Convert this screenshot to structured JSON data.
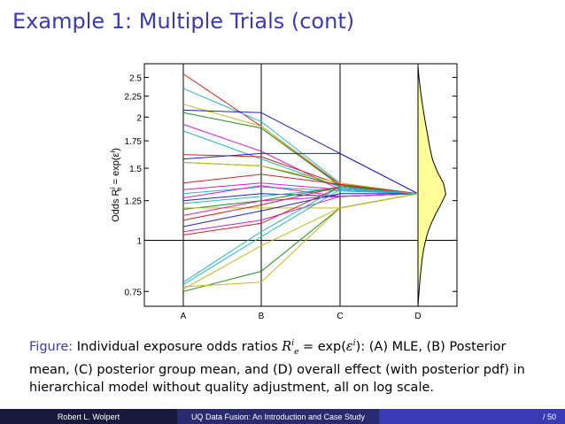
{
  "slide": {
    "title": "Example 1: Multiple Trials (cont)",
    "caption_label": "Figure:",
    "caption_pre": "Individual exposure odds ratios ",
    "caption_eq": "= exp(",
    "caption_post": "): (A) MLE, (B) Posterior mean, (C) posterior group mean, and (D) overall effect (with posterior pdf) in hierarchical model without quality adjustment, all on log scale.",
    "math_R": "R",
    "math_sup_i": "i",
    "math_sub_e": "e",
    "math_eps": "ε"
  },
  "footer": {
    "author": "Robert L. Wolpert",
    "talk_title": "UQ Data Fusion: An Introduction and Case Study",
    "page": "/ 50"
  },
  "chart_data": {
    "type": "line",
    "categories": [
      "A",
      "B",
      "C",
      "D"
    ],
    "ylabel": "Odds R",
    "ylabel_sup": "i",
    "ylabel_sub": "e",
    "ylabel_tail": " = exp(ε",
    "ylabel_tail_sup": "i",
    "ylabel_close": ")",
    "yscale": "log",
    "ylim": [
      0.69,
      2.7
    ],
    "yticks": [
      0.75,
      1,
      1.25,
      1.5,
      1.75,
      2,
      2.25,
      2.5
    ],
    "ytick_labels": [
      "0.75",
      "1",
      "1.25",
      "1.5",
      "1.75",
      "2",
      "2.25",
      "2.5"
    ],
    "reference_lines": [
      1.0
    ],
    "overall_effect_D": 1.3,
    "series": [
      {
        "color": "#d42020",
        "values": [
          2.55,
          1.9,
          1.37,
          1.3
        ]
      },
      {
        "color": "#22b8c8",
        "values": [
          2.35,
          1.95,
          1.38,
          1.3
        ]
      },
      {
        "color": "#c8b820",
        "values": [
          2.15,
          1.9,
          1.36,
          1.3
        ]
      },
      {
        "color": "#2020c0",
        "values": [
          2.08,
          2.05,
          1.63,
          1.3
        ]
      },
      {
        "color": "#208a20",
        "values": [
          2.05,
          1.88,
          1.36,
          1.3
        ]
      },
      {
        "color": "#d020d0",
        "values": [
          1.92,
          1.65,
          1.33,
          1.3
        ]
      },
      {
        "color": "#22b8c8",
        "values": [
          1.85,
          1.58,
          1.35,
          1.3
        ]
      },
      {
        "color": "#d42020",
        "values": [
          1.62,
          1.6,
          1.37,
          1.3
        ]
      },
      {
        "color": "#2020c0",
        "values": [
          1.58,
          1.63,
          1.63,
          1.3
        ]
      },
      {
        "color": "#208a20",
        "values": [
          1.55,
          1.52,
          1.36,
          1.3
        ]
      },
      {
        "color": "#c8b820",
        "values": [
          1.55,
          1.52,
          1.38,
          1.3
        ]
      },
      {
        "color": "#d42020",
        "values": [
          1.38,
          1.45,
          1.37,
          1.3
        ]
      },
      {
        "color": "#d020d0",
        "values": [
          1.33,
          1.38,
          1.33,
          1.3
        ]
      },
      {
        "color": "#22b8c8",
        "values": [
          1.3,
          1.35,
          1.32,
          1.3
        ]
      },
      {
        "color": "#d020d0",
        "values": [
          1.27,
          1.36,
          1.28,
          1.3
        ]
      },
      {
        "color": "#2020c0",
        "values": [
          1.25,
          1.3,
          1.28,
          1.3
        ]
      },
      {
        "color": "#22b8c8",
        "values": [
          1.23,
          1.28,
          1.34,
          1.3
        ]
      },
      {
        "color": "#208a20",
        "values": [
          1.19,
          1.25,
          1.35,
          1.3
        ]
      },
      {
        "color": "#c8b820",
        "values": [
          1.2,
          1.2,
          1.2,
          1.3
        ]
      },
      {
        "color": "#d020d0",
        "values": [
          1.15,
          1.25,
          1.28,
          1.3
        ]
      },
      {
        "color": "#d42020",
        "values": [
          1.12,
          1.22,
          1.35,
          1.3
        ]
      },
      {
        "color": "#2020c0",
        "values": [
          1.08,
          1.18,
          1.3,
          1.3
        ]
      },
      {
        "color": "#d020d0",
        "values": [
          1.05,
          1.12,
          1.28,
          1.3
        ]
      },
      {
        "color": "#d42020",
        "values": [
          1.03,
          1.1,
          1.35,
          1.3
        ]
      },
      {
        "color": "#22b8c8",
        "values": [
          0.79,
          1.05,
          1.35,
          1.3
        ]
      },
      {
        "color": "#22b8c8",
        "values": [
          0.78,
          1.02,
          1.33,
          1.3
        ]
      },
      {
        "color": "#c8b820",
        "values": [
          0.76,
          0.97,
          1.2,
          1.3
        ]
      },
      {
        "color": "#208a20",
        "values": [
          0.75,
          0.84,
          1.2,
          1.3
        ]
      },
      {
        "color": "#c8b820",
        "values": [
          0.77,
          0.79,
          1.2,
          1.3
        ]
      }
    ],
    "posterior_pdf_D": {
      "fill": "#ffff99",
      "log_values": [
        -0.37,
        -0.3,
        -0.2,
        -0.1,
        -0.05,
        0.0,
        0.05,
        0.1,
        0.15,
        0.2,
        0.26,
        0.32,
        0.38,
        0.45,
        0.52,
        0.6,
        0.68,
        0.76,
        0.84,
        0.92,
        0.98
      ],
      "density": [
        0.0,
        0.03,
        0.08,
        0.15,
        0.2,
        0.27,
        0.36,
        0.48,
        0.63,
        0.8,
        0.98,
        0.9,
        0.7,
        0.52,
        0.42,
        0.33,
        0.24,
        0.16,
        0.09,
        0.03,
        0.0
      ]
    }
  }
}
